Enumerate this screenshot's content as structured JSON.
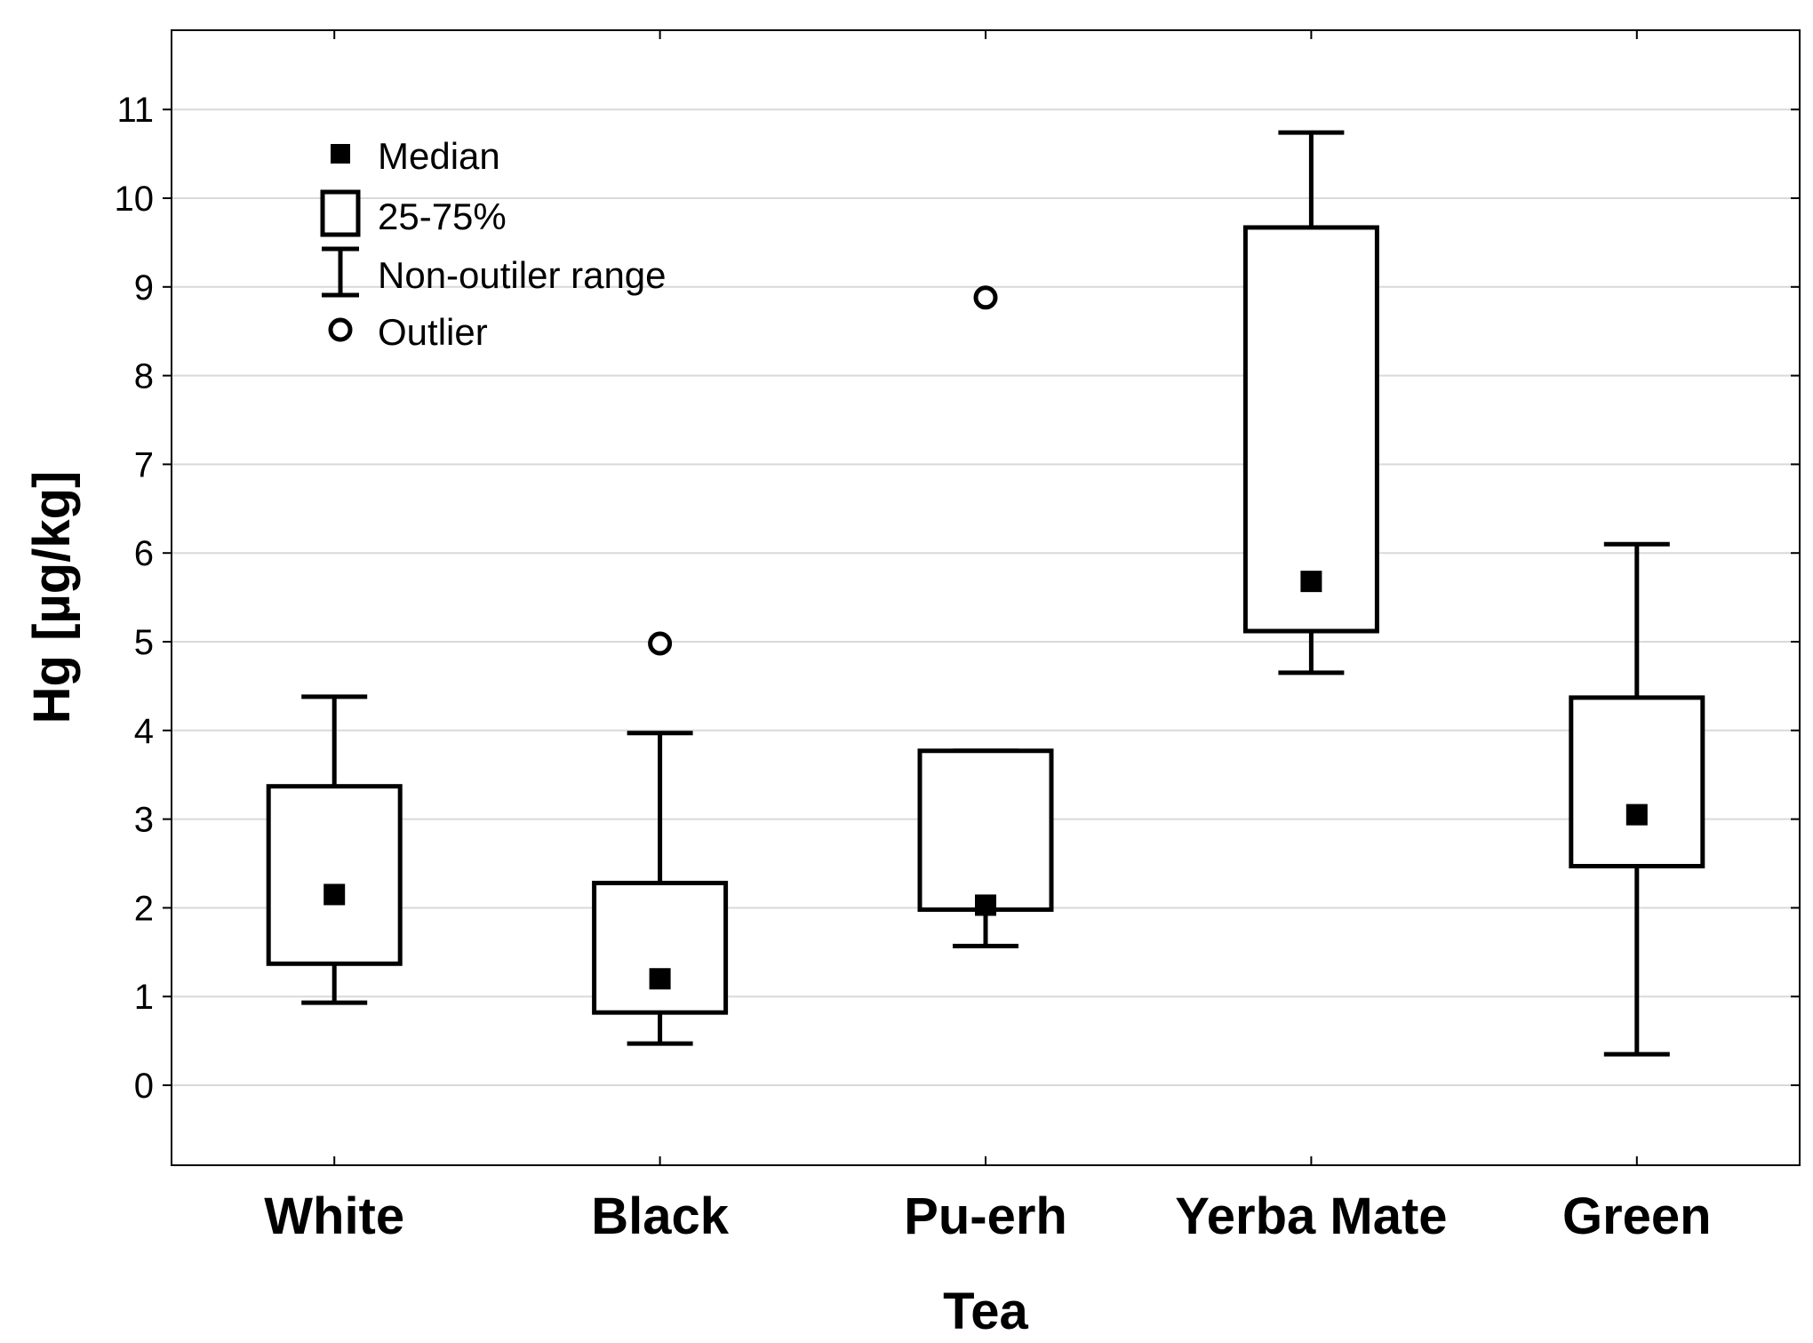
{
  "chart_data": {
    "type": "boxplot",
    "xlabel": "Tea",
    "ylabel": "Hg [µg/kg]",
    "ylim": [
      -0.9,
      11.9
    ],
    "yticks": [
      "0",
      "1",
      "2",
      "3",
      "4",
      "5",
      "6",
      "7",
      "8",
      "9",
      "10",
      "11"
    ],
    "grid": true,
    "legend_position": "top-left",
    "legend": {
      "median": "Median",
      "box": "25-75%",
      "whisker": "Non-outiler range",
      "outlier": "Outlier"
    },
    "categories": [
      "White",
      "Black",
      "Pu-erh",
      "Yerba Mate",
      "Green"
    ],
    "series": [
      {
        "category": "White",
        "median": 2.15,
        "q1": 1.37,
        "q3": 3.37,
        "min": 0.93,
        "max": 4.38,
        "outliers": []
      },
      {
        "category": "Black",
        "median": 1.2,
        "q1": 0.82,
        "q3": 2.28,
        "min": 0.47,
        "max": 3.97,
        "outliers": [
          4.98
        ]
      },
      {
        "category": "Pu-erh",
        "median": 2.03,
        "q1": 1.98,
        "q3": 3.77,
        "min": 1.57,
        "max": 3.77,
        "outliers": [
          8.88
        ]
      },
      {
        "category": "Yerba Mate",
        "median": 5.68,
        "q1": 5.12,
        "q3": 9.67,
        "min": 4.65,
        "max": 10.74,
        "outliers": []
      },
      {
        "category": "Green",
        "median": 3.05,
        "q1": 2.47,
        "q3": 4.37,
        "min": 0.35,
        "max": 6.1,
        "outliers": []
      }
    ]
  }
}
